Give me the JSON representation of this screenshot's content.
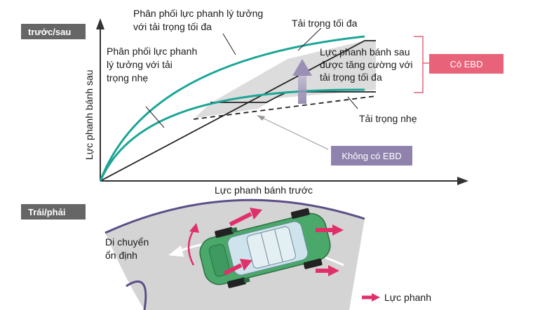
{
  "sections": {
    "front_rear": "trước/sau",
    "left_right": "Trái/phải"
  },
  "chart": {
    "ylabel": "Lực phanh bánh sau",
    "xlabel": "Lực phanh bánh trước",
    "labels": {
      "ideal_max": [
        "Phân phối lực phanh lý tưởng",
        "với tải trọng tối đa"
      ],
      "ideal_light": [
        "Phân phối lực phanh",
        "lý tưởng với tải",
        "trọng nhẹ"
      ],
      "max_load": "Tải trọng tối đa",
      "rear_boost": [
        "Lực phanh bánh sau",
        "được tăng cường với",
        "tải trọng tối đa"
      ],
      "light_load": "Tải trọng nhẹ"
    },
    "badges": {
      "with_ebd": "Có EBD",
      "without_ebd": "Không có EBD"
    }
  },
  "road": {
    "stable_label": [
      "Di chuyển",
      "ổn định"
    ],
    "legend_label": "Lực phanh"
  },
  "colors": {
    "curve": "#1aa596",
    "with_ebd": "#e8637a",
    "without_ebd": "#8f83ad",
    "boost_arrow": "#8a7fa8",
    "tag": "#666666",
    "road": "#d4d4d4",
    "road_edge": "#5b4e87",
    "car": "#4aa86a",
    "force": "#e0306a"
  }
}
